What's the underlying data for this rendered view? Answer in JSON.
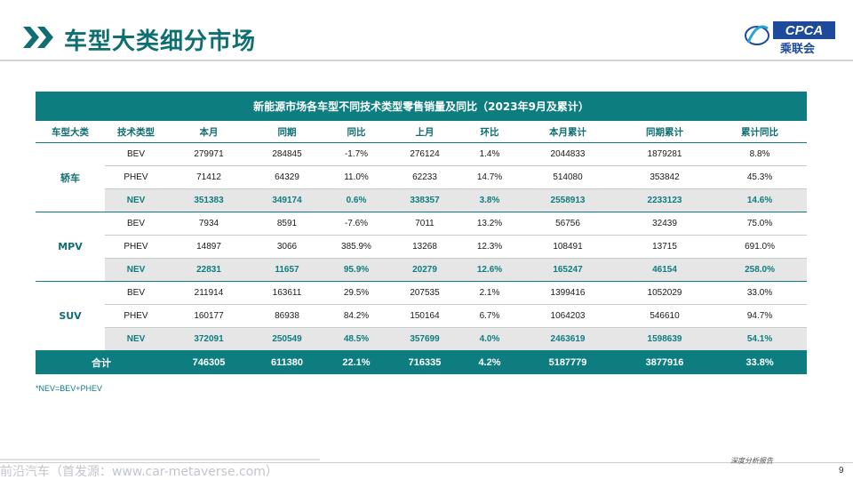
{
  "title": "车型大类细分市场",
  "logo": {
    "text": "CPCA",
    "cn": "乘联会"
  },
  "table": {
    "caption": "新能源市场各车型不同技术类型零售销量及同比（2023年9月及累计）",
    "headers": [
      "车型大类",
      "技术类型",
      "本月",
      "同期",
      "同比",
      "上月",
      "环比",
      "本月累计",
      "同期累计",
      "累计同比"
    ],
    "groups": [
      {
        "name": "轿车",
        "rows": [
          [
            "BEV",
            "279971",
            "284845",
            "-1.7%",
            "276124",
            "1.4%",
            "2044833",
            "1879281",
            "8.8%"
          ],
          [
            "PHEV",
            "71412",
            "64329",
            "11.0%",
            "62233",
            "14.7%",
            "514080",
            "353842",
            "45.3%"
          ],
          [
            "NEV",
            "351383",
            "349174",
            "0.6%",
            "338357",
            "3.8%",
            "2558913",
            "2233123",
            "14.6%"
          ]
        ]
      },
      {
        "name": "MPV",
        "rows": [
          [
            "BEV",
            "7934",
            "8591",
            "-7.6%",
            "7011",
            "13.2%",
            "56756",
            "32439",
            "75.0%"
          ],
          [
            "PHEV",
            "14897",
            "3066",
            "385.9%",
            "13268",
            "12.3%",
            "108491",
            "13715",
            "691.0%"
          ],
          [
            "NEV",
            "22831",
            "11657",
            "95.9%",
            "20279",
            "12.6%",
            "165247",
            "46154",
            "258.0%"
          ]
        ]
      },
      {
        "name": "SUV",
        "rows": [
          [
            "BEV",
            "211914",
            "163611",
            "29.5%",
            "207535",
            "2.1%",
            "1399416",
            "1052029",
            "33.0%"
          ],
          [
            "PHEV",
            "160177",
            "86938",
            "84.2%",
            "150164",
            "6.7%",
            "1064203",
            "546610",
            "94.7%"
          ],
          [
            "NEV",
            "372091",
            "250549",
            "48.5%",
            "357699",
            "4.0%",
            "2463619",
            "1598639",
            "54.1%"
          ]
        ]
      }
    ],
    "total": [
      "合计",
      "746305",
      "611380",
      "22.1%",
      "716335",
      "4.2%",
      "5187779",
      "3877916",
      "33.8%"
    ]
  },
  "footnote": "*NEV=BEV+PHEV",
  "footer_tag": "深度分析报告",
  "page_number": "9",
  "watermark": "前沿汽车（首发源：www.car-metaverse.com）",
  "colors": {
    "accent": "#0e7d80",
    "title": "#0e6e72",
    "nev_bg": "#e6e6e6"
  },
  "icons": [
    "double-chevron-icon",
    "cpca-logo-icon"
  ]
}
